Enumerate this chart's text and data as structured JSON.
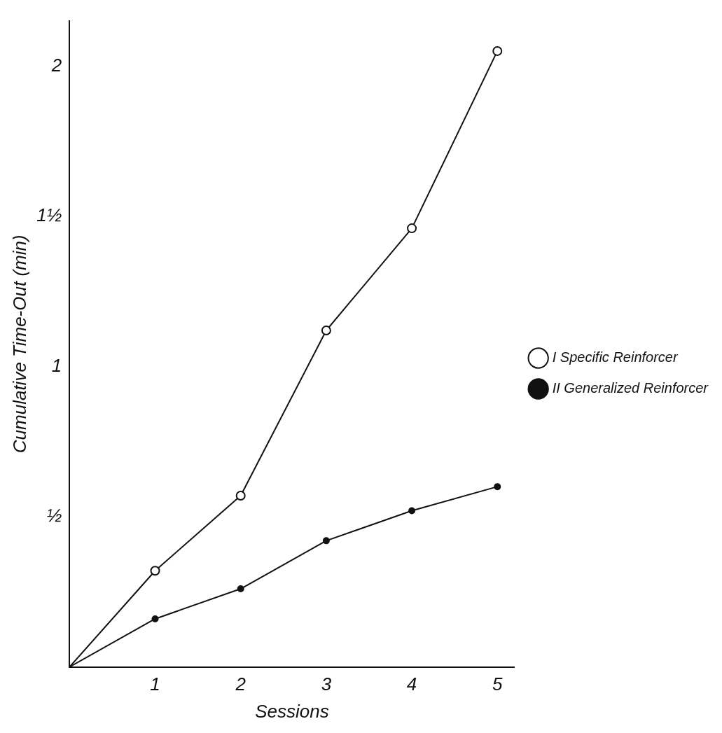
{
  "chart_data": {
    "type": "line",
    "xlabel": "Sessions",
    "ylabel": "Cumulative Time-Out (min)",
    "xlim": [
      0,
      5.2
    ],
    "xticks": [
      1,
      2,
      3,
      4,
      5
    ],
    "ylim": [
      0,
      2.15
    ],
    "yticks": [
      {
        "value": 0.5,
        "label": "½"
      },
      1,
      {
        "value": 1.5,
        "label": "1½"
      },
      2
    ],
    "series": [
      {
        "name": "I Specific Reinforcer",
        "color": "#111111",
        "x": [
          0,
          1,
          2,
          3,
          4,
          5
        ],
        "values": [
          0,
          0.32,
          0.57,
          1.12,
          1.46,
          2.05
        ],
        "marker": "circle"
      },
      {
        "name": "II Generalized Reinforcer",
        "color": "#111111",
        "x": [
          0,
          1,
          2,
          3,
          4,
          5
        ],
        "values": [
          0,
          0.16,
          0.26,
          0.42,
          0.52,
          0.6
        ],
        "marker": "circle"
      }
    ],
    "grid": false,
    "legend": "right",
    "line_style": "solid"
  }
}
